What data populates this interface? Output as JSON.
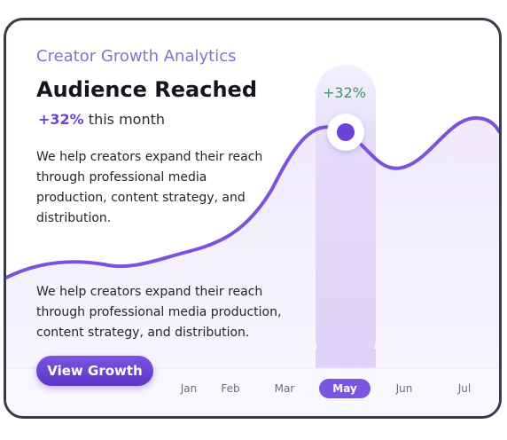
{
  "eyebrow": "Creator Growth Analytics",
  "title": "Audience Reached",
  "metric": {
    "value": "+32%",
    "suffix": "this month"
  },
  "description_top": "We help creators expand their reach through professional media production, content strategy, and distribution.",
  "description_bottom": "We help creators expand their reach through professional media production, content strategy, and distribution.",
  "cta_label": "View Growth",
  "highlight": {
    "label": "+32%",
    "month": "May"
  },
  "months": [
    {
      "label": "Jan",
      "active": false
    },
    {
      "label": "Feb",
      "active": false
    },
    {
      "label": "Mar",
      "active": false
    },
    {
      "label": "May",
      "active": true
    },
    {
      "label": "Jun",
      "active": false
    },
    {
      "label": "Jul",
      "active": false
    }
  ],
  "colors": {
    "accent": "#7a55e0",
    "line": "#7b52dc",
    "positive": "#2f9e6a",
    "border": "#3a3a48"
  }
}
